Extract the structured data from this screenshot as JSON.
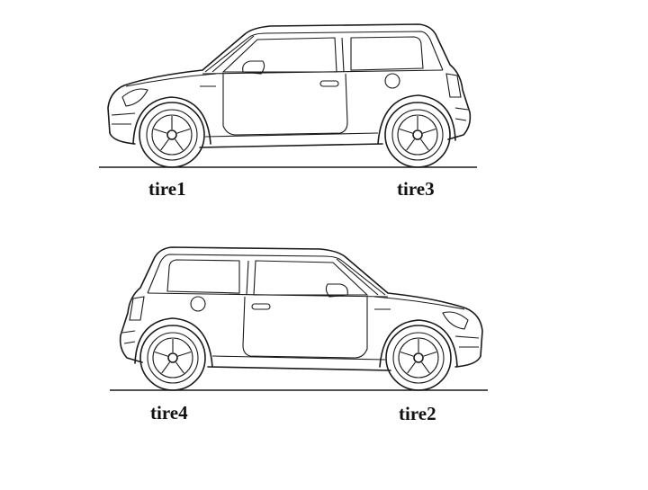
{
  "labels": {
    "tire1": "tire1",
    "tire3": "tire3",
    "tire4": "tire4",
    "tire2": "tire2"
  },
  "colors": {
    "ink": "#1a1a1a",
    "background": "#ffffff"
  }
}
